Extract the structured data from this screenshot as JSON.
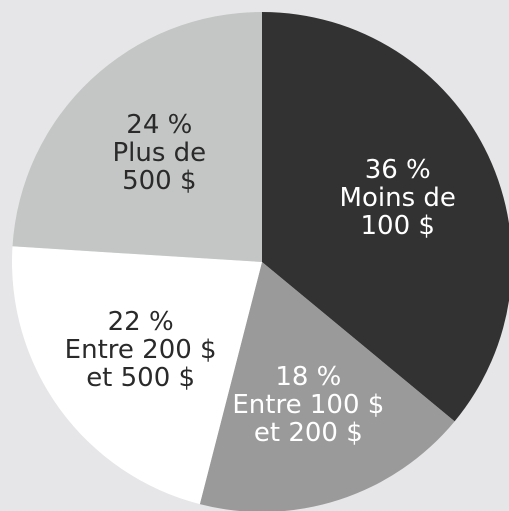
{
  "chart_data": {
    "type": "pie",
    "categories": [
      "Moins de 100 $",
      "Entre 100 $ et 200 $",
      "Entre 200 $ et 500 $",
      "Plus de 500 $"
    ],
    "values": [
      36,
      18,
      22,
      24
    ],
    "value_labels": [
      "36 %",
      "18 %",
      "22 %",
      "24 %"
    ],
    "colors": [
      "#323232",
      "#9a9a9a",
      "#ffffff",
      "#c3c6c4"
    ],
    "label_colors": [
      "#ffffff",
      "#ffffff",
      "#2a2a2a",
      "#2a2a2a"
    ]
  }
}
